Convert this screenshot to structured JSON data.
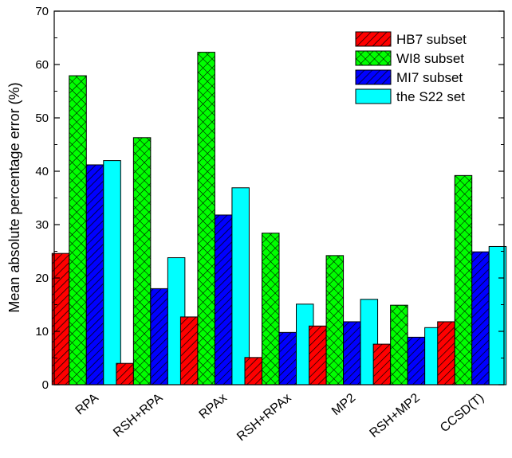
{
  "chart_data": {
    "type": "bar",
    "title": "",
    "xlabel": "",
    "ylabel": "Mean absolute percentage error (%)",
    "ylim": [
      0,
      70
    ],
    "yticks": [
      0,
      10,
      20,
      30,
      40,
      50,
      60,
      70
    ],
    "categories": [
      "RPA",
      "RSH+RPA",
      "RPAx",
      "RSH+RPAx",
      "MP2",
      "RSH+MP2",
      "CCSD(T)"
    ],
    "legend_position": "top-right",
    "grid": false,
    "series": [
      {
        "name": "HB7 subset",
        "color": "#ff0000",
        "pattern": "diagonal-hatch",
        "values": [
          24.6,
          4.0,
          12.7,
          5.1,
          11.0,
          7.6,
          11.8
        ]
      },
      {
        "name": "WI8 subset",
        "color": "#00ff00",
        "pattern": "cross-hatch",
        "values": [
          57.9,
          46.3,
          62.3,
          28.4,
          24.2,
          14.9,
          39.2
        ]
      },
      {
        "name": "MI7 subset",
        "color": "#0000ff",
        "pattern": "diagonal-hatch",
        "values": [
          41.2,
          18.0,
          31.8,
          9.8,
          11.8,
          8.9,
          24.9
        ]
      },
      {
        "name": "the S22 set",
        "color": "#00ffff",
        "pattern": "solid",
        "values": [
          42.0,
          23.8,
          36.9,
          15.1,
          16.0,
          10.7,
          25.9
        ]
      }
    ]
  }
}
